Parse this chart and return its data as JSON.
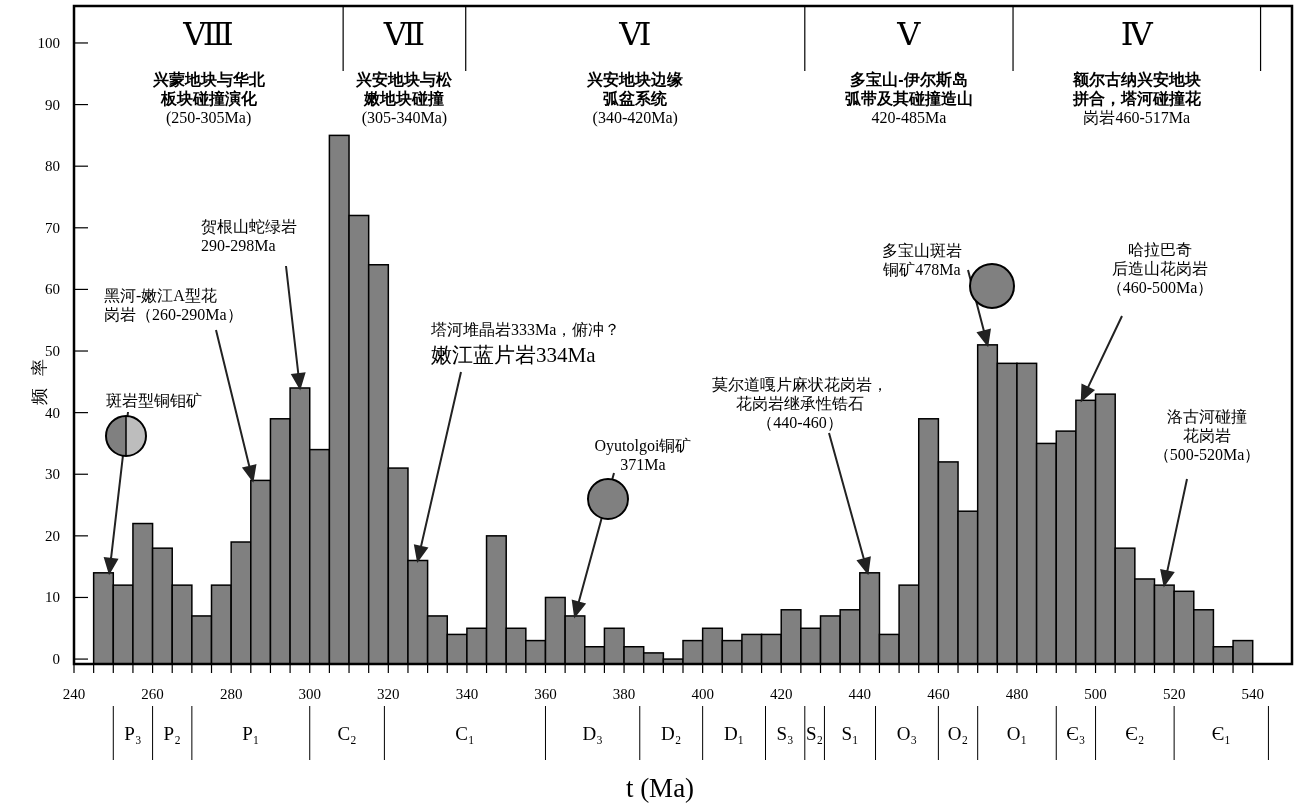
{
  "chart_data": [
    {
      "type": "histogram",
      "xlabel": "t (Ma)",
      "ylabel": "频 率",
      "color": "#808080",
      "bins": [
        245,
        250,
        255,
        260,
        265,
        270,
        275,
        280,
        285,
        290,
        295,
        300,
        305,
        310,
        315,
        320,
        325,
        330,
        335,
        340,
        345,
        350,
        355,
        360,
        365,
        370,
        375,
        380,
        385,
        390,
        395,
        400,
        405,
        410,
        415,
        420,
        425,
        430,
        435,
        440,
        445,
        450,
        455,
        460,
        465,
        470,
        475,
        480,
        485,
        490,
        495,
        500,
        505,
        510,
        515,
        520,
        525,
        530,
        535,
        540
      ],
      "values": [
        14,
        12,
        22,
        18,
        12,
        7,
        12,
        19,
        29,
        39,
        44,
        34,
        85,
        72,
        64,
        31,
        16,
        7,
        4,
        5,
        20,
        5,
        3,
        10,
        7,
        2,
        5,
        2,
        1,
        0,
        3,
        5,
        3,
        4,
        4,
        8,
        5,
        7,
        8,
        14,
        4,
        12,
        39,
        32,
        24,
        51,
        48,
        48,
        35,
        37,
        42,
        43,
        18,
        13,
        12,
        11,
        8,
        2,
        3
      ],
      "xlim": [
        240,
        550
      ],
      "ylim": [
        -0.8,
        106
      ],
      "yticks": [
        0,
        10,
        20,
        30,
        40,
        50,
        60,
        70,
        80,
        90,
        100
      ],
      "xticks": [
        240,
        {
          "value": 245,
          "label": null
        },
        {
          "value": 250,
          "label": null
        },
        {
          "value": 255,
          "label": null
        },
        260,
        {
          "value": 265,
          "label": null
        },
        {
          "value": 270,
          "label": null
        },
        {
          "value": 275,
          "label": null
        },
        280,
        {
          "value": 285,
          "label": null
        },
        {
          "value": 290,
          "label": null
        },
        {
          "value": 295,
          "label": null
        },
        300,
        {
          "value": 305,
          "label": null
        },
        {
          "value": 310,
          "label": null
        },
        {
          "value": 315,
          "label": null
        },
        320,
        {
          "value": 325,
          "label": null
        },
        {
          "value": 330,
          "label": null
        },
        {
          "value": 335,
          "label": null
        },
        340,
        {
          "value": 345,
          "label": null
        },
        {
          "value": 350,
          "label": null
        },
        {
          "value": 355,
          "label": null
        },
        360,
        {
          "value": 365,
          "label": null
        },
        {
          "value": 370,
          "label": null
        },
        {
          "value": 375,
          "label": null
        },
        380,
        {
          "value": 385,
          "label": null
        },
        {
          "value": 390,
          "label": null
        },
        {
          "value": 395,
          "label": null
        },
        400,
        {
          "value": 405,
          "label": null
        },
        {
          "value": 410,
          "label": null
        },
        {
          "value": 415,
          "label": null
        },
        420,
        {
          "value": 425,
          "label": null
        },
        {
          "value": 430,
          "label": null
        },
        {
          "value": 435,
          "label": null
        },
        440,
        {
          "value": 445,
          "label": null
        },
        {
          "value": 450,
          "label": null
        },
        {
          "value": 455,
          "label": null
        },
        460,
        {
          "value": 465,
          "label": null
        },
        {
          "value": 470,
          "label": null
        },
        {
          "value": 475,
          "label": null
        },
        480,
        {
          "value": 485,
          "label": null
        },
        {
          "value": 490,
          "label": null
        },
        {
          "value": 495,
          "label": null
        },
        500,
        {
          "value": 505,
          "label": null
        },
        {
          "value": 510,
          "label": null
        },
        {
          "value": 515,
          "label": null
        },
        520,
        {
          "value": 525,
          "label": null
        },
        {
          "value": 530,
          "label": null
        },
        {
          "value": 535,
          "label": null
        },
        540
      ],
      "ref_lines": [
        {
          "axis": "x",
          "value": 308.5
        },
        {
          "axis": "x",
          "value": 339.7
        },
        {
          "axis": "x",
          "value": 426
        },
        {
          "axis": "x",
          "value": 479
        },
        {
          "axis": "x",
          "value": 542
        }
      ],
      "annotations": [
        "Ⅷ",
        "兴蒙地块与华北板块碰撞演化(250-305Ma)",
        "Ⅶ",
        "兴安地块与松嫩地块碰撞(305-340Ma)",
        "Ⅵ",
        "兴安地块边缘弧盆系统(340-420Ma)",
        "Ⅴ",
        "多宝山-伊尔斯岛弧带及其碰撞造山420-485Ma",
        "Ⅳ",
        "额尔古纳兴安地块拼合，塔河碰撞花岗岩460-517Ma",
        {
          "text": "斑岩型铜钼矿",
          "x": 249,
          "y": 14
        },
        {
          "text": "黑河-嫩江A型花岗岩（260-290Ma）",
          "x": 285.5,
          "y": 29
        },
        {
          "text": "贺根山蛇绿岩290-298Ma",
          "x": 297.5,
          "y": 44
        },
        "塔河堆晶岩333Ma，俯冲？",
        {
          "text": "嫩江蓝片岩334Ma",
          "x": 327.5,
          "y": 16
        },
        {
          "text": "Oyutolgoi铜矿371Ma",
          "x": 367.5,
          "y": 7
        },
        {
          "text": "莫尔道嘎片麻状花岗岩，花岗岩继承性锆石（440-460）",
          "x": 442,
          "y": 14
        },
        {
          "text": "多宝山斑岩铜矿478Ma",
          "x": 472.5,
          "y": 51
        },
        {
          "text": "哈拉巴奇后造山花岗岩（460-500Ma）",
          "x": 496.5,
          "y": 42
        },
        {
          "text": "洛古河碰撞花岗岩（500-520Ma）",
          "x": 517.5,
          "y": 12
        }
      ]
    },
    {
      "type": "other",
      "categories": [
        "P₃",
        "P₂",
        "P₁",
        "C₂",
        "C₁",
        "D₃",
        "D₂",
        "D₁",
        "S₃",
        "S₂",
        "S₁",
        "O₃",
        "O₂",
        "O₁",
        "Є₃",
        "Є₂",
        "Є₁"
      ]
    }
  ]
}
